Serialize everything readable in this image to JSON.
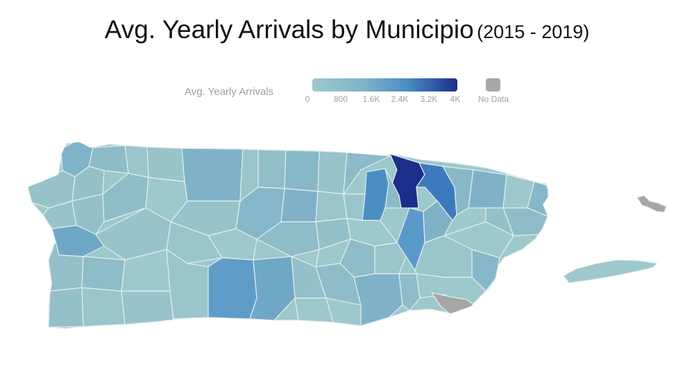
{
  "title": {
    "main": "Avg. Yearly Arrivals by Municipio",
    "sub": "(2015 - 2019)"
  },
  "legend": {
    "title": "Avg. Yearly Arrivals",
    "ticks": [
      "0",
      "800",
      "1.6K",
      "2.4K",
      "3.2K",
      "4K"
    ],
    "range": [
      0,
      4000
    ],
    "no_data_label": "No Data",
    "colors": {
      "low": "#9dc8cc",
      "mid1": "#7fb3c8",
      "mid2": "#4a8fc4",
      "high": "#1c2d8a",
      "no_data": "#a6a6a6",
      "border": "#e4eef0"
    }
  },
  "map": {
    "scale": "continuous",
    "units": "arrivals per year",
    "highlighted_levels": [
      {
        "region": "north-central-dark",
        "level": 4000
      },
      {
        "region": "north-east-of-dark",
        "level": 2400
      },
      {
        "region": "north-west-of-dark",
        "level": 2000
      },
      {
        "region": "central-east",
        "level": 1800
      },
      {
        "region": "south-central",
        "level": 1500
      },
      {
        "region": "west-coast",
        "level": 1200
      },
      {
        "region": "northwest-interior",
        "level": 1000
      }
    ],
    "no_data_regions": [
      "southeast-coast",
      "vieques"
    ]
  }
}
